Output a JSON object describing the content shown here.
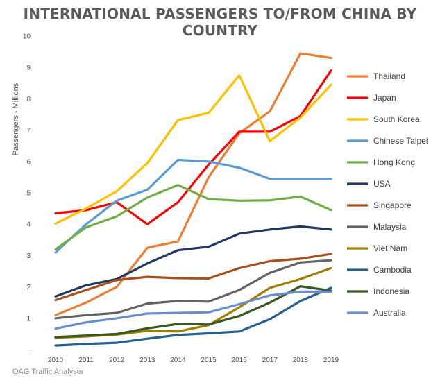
{
  "chart_data": {
    "type": "line",
    "title": "INTERNATIONAL PASSENGERS TO/FROM CHINA BY COUNTRY",
    "ylabel": "Passengers - Millions",
    "xlabel": "",
    "x": [
      2010,
      2011,
      2012,
      2013,
      2014,
      2015,
      2016,
      2017,
      2018,
      2019
    ],
    "x_tick_labels": [
      "2010",
      "2011",
      "2012",
      "2013",
      "2014",
      "2015",
      "2016",
      "2017",
      "2018",
      "2019"
    ],
    "ylim": [
      0,
      10
    ],
    "y_tick_labels": [
      "-",
      "1",
      "2",
      "3",
      "4",
      "5",
      "6",
      "7",
      "8",
      "9",
      "10"
    ],
    "grid": false,
    "legend_position": "right",
    "series": [
      {
        "name": "Thailand",
        "color": "#ED7D31",
        "values": [
          1.1,
          1.5,
          2.0,
          3.25,
          3.45,
          5.5,
          6.9,
          7.6,
          9.45,
          9.3
        ]
      },
      {
        "name": "Japan",
        "color": "#FF0000",
        "values": [
          4.35,
          4.45,
          4.7,
          4.0,
          4.7,
          5.9,
          6.95,
          6.95,
          7.45,
          8.9
        ]
      },
      {
        "name": "South Korea",
        "color": "#FFC000",
        "values": [
          4.02,
          4.5,
          5.05,
          5.95,
          7.32,
          7.55,
          8.75,
          6.65,
          7.4,
          8.45
        ]
      },
      {
        "name": "Chinese Taipei",
        "color": "#5B9BD5",
        "values": [
          3.1,
          4.0,
          4.75,
          5.1,
          6.05,
          6.0,
          5.8,
          5.45,
          5.45,
          5.45
        ]
      },
      {
        "name": "Hong Kong",
        "color": "#70AD47",
        "values": [
          3.2,
          3.9,
          4.25,
          4.85,
          5.25,
          4.8,
          4.75,
          4.76,
          4.88,
          4.45
        ]
      },
      {
        "name": "USA",
        "color": "#203864",
        "values": [
          1.7,
          2.05,
          2.25,
          2.75,
          3.17,
          3.28,
          3.7,
          3.83,
          3.93,
          3.83
        ]
      },
      {
        "name": "Singapore",
        "color": "#A5501E",
        "values": [
          1.58,
          1.9,
          2.22,
          2.32,
          2.28,
          2.27,
          2.6,
          2.82,
          2.9,
          3.05
        ]
      },
      {
        "name": "Malaysia",
        "color": "#636363",
        "values": [
          1.0,
          1.1,
          1.17,
          1.47,
          1.55,
          1.53,
          1.9,
          2.45,
          2.78,
          2.85
        ]
      },
      {
        "name": "Viet Nam",
        "color": "#9E7E00",
        "values": [
          0.38,
          0.42,
          0.48,
          0.6,
          0.58,
          0.78,
          1.35,
          1.97,
          2.25,
          2.6
        ]
      },
      {
        "name": "Cambodia",
        "color": "#255E91",
        "values": [
          0.13,
          0.18,
          0.22,
          0.35,
          0.47,
          0.52,
          0.58,
          0.97,
          1.55,
          1.97
        ]
      },
      {
        "name": "Indonesia",
        "color": "#385723",
        "values": [
          0.4,
          0.45,
          0.5,
          0.68,
          0.82,
          0.8,
          1.07,
          1.5,
          2.02,
          1.88
        ]
      },
      {
        "name": "Australia",
        "color": "#698ED0",
        "values": [
          0.67,
          0.87,
          1.0,
          1.15,
          1.17,
          1.19,
          1.45,
          1.73,
          1.85,
          1.85
        ]
      }
    ]
  },
  "source_note": "OAG Traffic Analyser"
}
